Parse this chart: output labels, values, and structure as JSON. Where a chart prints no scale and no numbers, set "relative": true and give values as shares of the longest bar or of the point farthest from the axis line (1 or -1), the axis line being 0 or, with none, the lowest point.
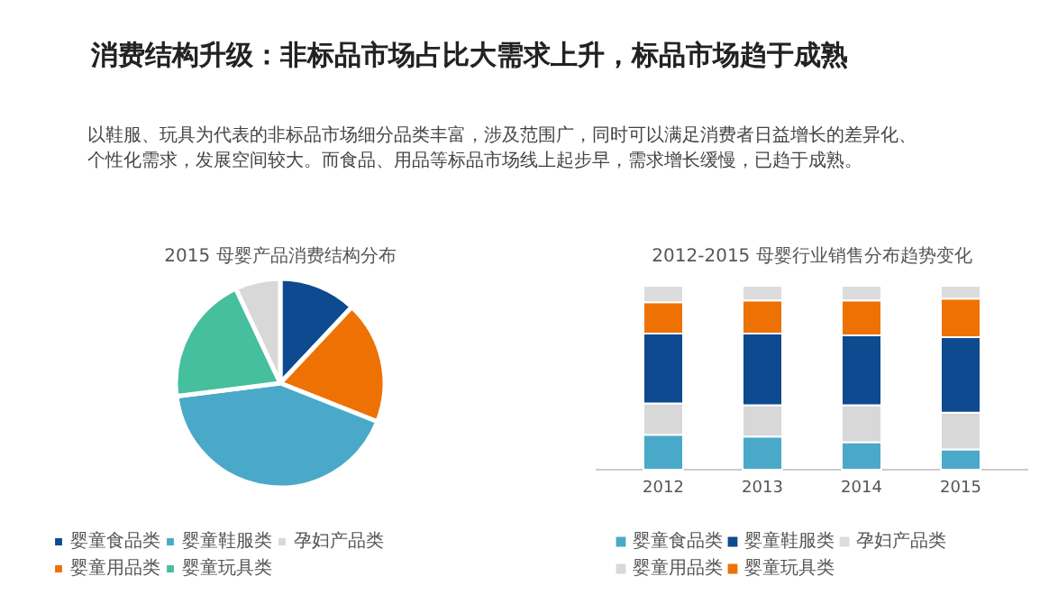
{
  "chart_data": [
    {
      "type": "other",
      "title": "消费结构升级：非标品市场占比大需求上升，标品市场趋于成熟",
      "annotations": [
        "以鞋服、玩具为代表的非标品市场细分品类丰富，涉及范围广，同时可以满足消费者日益增长的差异化、个性化需求，发展空间较大。而食品、用品等标品市场线上起步早，需求增长缓慢，已趋于成熟。"
      ]
    },
    {
      "type": "pie",
      "title": "2015 母婴产品消费结构分布",
      "categories": [
        "婴童食品类",
        "婴童用品类",
        "婴童鞋服类",
        "婴童玩具类",
        "孕妇产品类"
      ],
      "values": [
        12,
        19,
        42,
        20,
        7
      ],
      "colors": [
        "#0d4a8f",
        "#ee7203",
        "#4aa9c8",
        "#45bf9e",
        "#d8d8d8"
      ],
      "legend": "bottom"
    },
    {
      "type": "bar",
      "title": "2012-2015 母婴行业销售分布趋势变化",
      "categories": [
        "2012",
        "2013",
        "2014",
        "2015"
      ],
      "stacked": true,
      "relative": true,
      "legend": "bottom",
      "series": [
        {
          "name": "婴童食品类",
          "color": "#4aa9c8",
          "values": [
            0.19,
            0.18,
            0.15,
            0.11
          ]
        },
        {
          "name": "婴童用品类",
          "color": "#d8d8d8",
          "values": [
            0.17,
            0.17,
            0.2,
            0.2
          ]
        },
        {
          "name": "婴童鞋服类",
          "color": "#0d4a8f",
          "values": [
            0.38,
            0.39,
            0.38,
            0.41
          ]
        },
        {
          "name": "婴童玩具类",
          "color": "#ee7203",
          "values": [
            0.17,
            0.18,
            0.19,
            0.21
          ]
        },
        {
          "name": "孕妇产品类",
          "color": "#dcdcdc",
          "values": [
            0.09,
            0.08,
            0.08,
            0.07
          ]
        }
      ]
    }
  ]
}
